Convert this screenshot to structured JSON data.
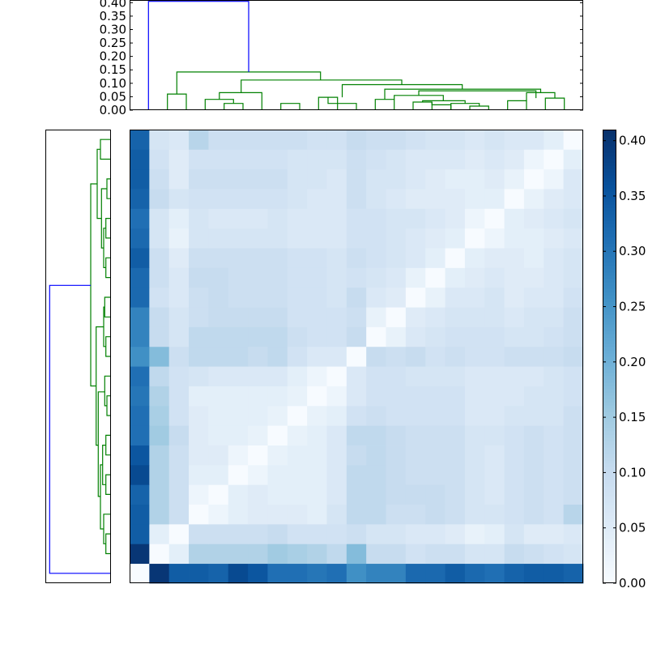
{
  "chart_data": {
    "type": "heatmap",
    "title": "",
    "n": 23,
    "colormap": "Blues",
    "colormap_stops": [
      "#f7fbff",
      "#deebf7",
      "#c6dbef",
      "#9ecae1",
      "#6baed6",
      "#4292c6",
      "#2171b5",
      "#08519c",
      "#08306b"
    ],
    "vmin": 0.0,
    "vmax": 0.41,
    "first_row_distances": [
      0.0,
      0.4,
      0.34,
      0.34,
      0.33,
      0.37,
      0.35,
      0.31,
      0.31,
      0.3,
      0.31,
      0.26,
      0.28,
      0.28,
      0.32,
      0.32,
      0.34,
      0.32,
      0.31,
      0.33,
      0.34,
      0.34,
      0.33
    ],
    "distance_matrix": [
      [
        0.0,
        0.4,
        0.34,
        0.34,
        0.33,
        0.37,
        0.35,
        0.31,
        0.31,
        0.3,
        0.31,
        0.26,
        0.28,
        0.28,
        0.32,
        0.32,
        0.34,
        0.32,
        0.31,
        0.33,
        0.34,
        0.34,
        0.33
      ],
      [
        0.4,
        0.0,
        0.04,
        0.13,
        0.13,
        0.13,
        0.13,
        0.15,
        0.14,
        0.13,
        0.11,
        0.18,
        0.1,
        0.1,
        0.08,
        0.09,
        0.09,
        0.07,
        0.07,
        0.1,
        0.09,
        0.08,
        0.07
      ],
      [
        0.34,
        0.04,
        0.0,
        0.09,
        0.09,
        0.09,
        0.09,
        0.1,
        0.08,
        0.08,
        0.08,
        0.09,
        0.07,
        0.07,
        0.06,
        0.06,
        0.05,
        0.03,
        0.04,
        0.07,
        0.05,
        0.05,
        0.06
      ],
      [
        0.34,
        0.13,
        0.09,
        0.0,
        0.02,
        0.04,
        0.05,
        0.05,
        0.05,
        0.04,
        0.07,
        0.11,
        0.11,
        0.09,
        0.09,
        0.1,
        0.09,
        0.07,
        0.07,
        0.08,
        0.09,
        0.08,
        0.12
      ],
      [
        0.33,
        0.13,
        0.09,
        0.02,
        0.0,
        0.04,
        0.05,
        0.04,
        0.04,
        0.04,
        0.06,
        0.11,
        0.11,
        0.1,
        0.1,
        0.1,
        0.09,
        0.07,
        0.06,
        0.08,
        0.09,
        0.08,
        0.09
      ],
      [
        0.37,
        0.13,
        0.09,
        0.04,
        0.04,
        0.0,
        0.02,
        0.04,
        0.04,
        0.04,
        0.06,
        0.11,
        0.11,
        0.1,
        0.09,
        0.09,
        0.09,
        0.07,
        0.06,
        0.08,
        0.09,
        0.08,
        0.09
      ],
      [
        0.35,
        0.13,
        0.09,
        0.05,
        0.05,
        0.02,
        0.0,
        0.03,
        0.04,
        0.04,
        0.06,
        0.1,
        0.11,
        0.1,
        0.09,
        0.09,
        0.09,
        0.07,
        0.06,
        0.08,
        0.09,
        0.08,
        0.09
      ],
      [
        0.31,
        0.15,
        0.1,
        0.05,
        0.04,
        0.04,
        0.03,
        0.0,
        0.03,
        0.04,
        0.06,
        0.11,
        0.11,
        0.1,
        0.09,
        0.09,
        0.09,
        0.07,
        0.07,
        0.08,
        0.09,
        0.08,
        0.09
      ],
      [
        0.31,
        0.14,
        0.08,
        0.05,
        0.04,
        0.04,
        0.04,
        0.03,
        0.0,
        0.03,
        0.04,
        0.08,
        0.09,
        0.08,
        0.08,
        0.08,
        0.08,
        0.06,
        0.06,
        0.07,
        0.07,
        0.07,
        0.09
      ],
      [
        0.3,
        0.13,
        0.08,
        0.04,
        0.04,
        0.04,
        0.04,
        0.04,
        0.03,
        0.0,
        0.02,
        0.06,
        0.08,
        0.08,
        0.08,
        0.08,
        0.08,
        0.06,
        0.06,
        0.06,
        0.07,
        0.07,
        0.08
      ],
      [
        0.31,
        0.11,
        0.08,
        0.07,
        0.06,
        0.06,
        0.06,
        0.06,
        0.04,
        0.02,
        0.0,
        0.06,
        0.08,
        0.08,
        0.07,
        0.07,
        0.07,
        0.06,
        0.06,
        0.06,
        0.06,
        0.07,
        0.08
      ],
      [
        0.26,
        0.18,
        0.09,
        0.11,
        0.11,
        0.11,
        0.1,
        0.11,
        0.08,
        0.06,
        0.06,
        0.0,
        0.1,
        0.09,
        0.1,
        0.08,
        0.09,
        0.08,
        0.08,
        0.09,
        0.09,
        0.09,
        0.1
      ],
      [
        0.28,
        0.1,
        0.07,
        0.11,
        0.11,
        0.11,
        0.11,
        0.11,
        0.09,
        0.08,
        0.08,
        0.1,
        0.0,
        0.03,
        0.06,
        0.07,
        0.08,
        0.08,
        0.08,
        0.07,
        0.07,
        0.08,
        0.09
      ],
      [
        0.28,
        0.1,
        0.07,
        0.09,
        0.1,
        0.1,
        0.1,
        0.1,
        0.08,
        0.08,
        0.08,
        0.09,
        0.03,
        0.0,
        0.05,
        0.06,
        0.07,
        0.07,
        0.07,
        0.06,
        0.07,
        0.07,
        0.09
      ],
      [
        0.32,
        0.08,
        0.06,
        0.09,
        0.1,
        0.09,
        0.09,
        0.09,
        0.08,
        0.08,
        0.07,
        0.1,
        0.06,
        0.05,
        0.0,
        0.03,
        0.06,
        0.06,
        0.07,
        0.05,
        0.06,
        0.06,
        0.08
      ],
      [
        0.32,
        0.09,
        0.06,
        0.1,
        0.1,
        0.09,
        0.09,
        0.09,
        0.08,
        0.08,
        0.07,
        0.08,
        0.07,
        0.06,
        0.03,
        0.0,
        0.04,
        0.05,
        0.06,
        0.05,
        0.05,
        0.06,
        0.07
      ],
      [
        0.34,
        0.09,
        0.05,
        0.09,
        0.09,
        0.09,
        0.09,
        0.09,
        0.08,
        0.08,
        0.07,
        0.09,
        0.08,
        0.07,
        0.06,
        0.04,
        0.0,
        0.04,
        0.05,
        0.05,
        0.04,
        0.06,
        0.07
      ],
      [
        0.32,
        0.07,
        0.03,
        0.07,
        0.07,
        0.07,
        0.07,
        0.07,
        0.06,
        0.06,
        0.06,
        0.08,
        0.08,
        0.07,
        0.06,
        0.05,
        0.04,
        0.0,
        0.02,
        0.04,
        0.04,
        0.05,
        0.06
      ],
      [
        0.31,
        0.07,
        0.04,
        0.07,
        0.06,
        0.06,
        0.06,
        0.07,
        0.06,
        0.06,
        0.06,
        0.08,
        0.08,
        0.07,
        0.07,
        0.06,
        0.05,
        0.02,
        0.0,
        0.04,
        0.05,
        0.06,
        0.07
      ],
      [
        0.33,
        0.1,
        0.07,
        0.08,
        0.08,
        0.08,
        0.08,
        0.08,
        0.07,
        0.06,
        0.06,
        0.09,
        0.07,
        0.06,
        0.05,
        0.05,
        0.05,
        0.04,
        0.04,
        0.0,
        0.03,
        0.05,
        0.06
      ],
      [
        0.34,
        0.09,
        0.05,
        0.09,
        0.09,
        0.09,
        0.09,
        0.09,
        0.07,
        0.07,
        0.06,
        0.09,
        0.07,
        0.07,
        0.06,
        0.05,
        0.04,
        0.04,
        0.05,
        0.03,
        0.0,
        0.02,
        0.06
      ],
      [
        0.34,
        0.08,
        0.05,
        0.08,
        0.08,
        0.08,
        0.08,
        0.08,
        0.07,
        0.07,
        0.07,
        0.09,
        0.08,
        0.07,
        0.06,
        0.06,
        0.06,
        0.05,
        0.06,
        0.05,
        0.02,
        0.0,
        0.04
      ],
      [
        0.33,
        0.07,
        0.06,
        0.12,
        0.09,
        0.09,
        0.09,
        0.09,
        0.09,
        0.08,
        0.08,
        0.1,
        0.09,
        0.09,
        0.08,
        0.07,
        0.07,
        0.06,
        0.07,
        0.06,
        0.06,
        0.04,
        0.0
      ]
    ],
    "colorbar": {
      "ticks": [
        "0.00",
        "0.05",
        "0.10",
        "0.15",
        "0.20",
        "0.25",
        "0.30",
        "0.35",
        "0.40"
      ]
    },
    "top_dendrogram": {
      "ylim": [
        0,
        0.41
      ],
      "ticks": [
        "0.00",
        "0.05",
        "0.10",
        "0.15",
        "0.20",
        "0.25",
        "0.30",
        "0.35",
        "0.40"
      ],
      "links": [
        {
          "a": 8.0,
          "ha": 0.0,
          "b": 9.0,
          "hb": 0.0,
          "h": 0.025,
          "color": "#008000"
        },
        {
          "a": 5.0,
          "ha": 0.0,
          "b": 6.0,
          "hb": 0.0,
          "h": 0.025,
          "color": "#008000"
        },
        {
          "a": 13.0,
          "ha": 0.0,
          "b": 14.0,
          "hb": 0.0,
          "h": 0.04,
          "color": "#008000"
        },
        {
          "a": 15.0,
          "ha": 0.0,
          "b": 16.0,
          "hb": 0.0,
          "h": 0.03,
          "color": "#008000"
        },
        {
          "a": 16.0,
          "ha": 0.03,
          "b": 17.0,
          "hb": 0.0,
          "h": 0.02,
          "color": "#008000"
        },
        {
          "a": 18.0,
          "ha": 0.0,
          "b": 19.0,
          "hb": 0.0,
          "h": 0.015,
          "color": "#008000"
        },
        {
          "a": 17.0,
          "ha": 0.0,
          "b": 18.5,
          "hb": 0.015,
          "h": 0.025,
          "color": "#008000"
        },
        {
          "a": 15.5,
          "ha": 0.03,
          "b": 17.75,
          "hb": 0.025,
          "h": 0.035,
          "color": "#008000"
        },
        {
          "a": 20.0,
          "ha": 0.0,
          "b": 21.0,
          "hb": 0.0,
          "h": 0.035,
          "color": "#008000"
        },
        {
          "a": 22.0,
          "ha": 0.0,
          "b": 23.0,
          "hb": 0.0,
          "h": 0.045,
          "color": "#008000"
        },
        {
          "a": 4.0,
          "ha": 0.0,
          "b": 5.5,
          "hb": 0.025,
          "h": 0.04,
          "color": "#008000"
        },
        {
          "a": 4.75,
          "ha": 0.04,
          "b": 7.0,
          "hb": 0.0,
          "h": 0.065,
          "color": "#008000"
        },
        {
          "a": 10.0,
          "ha": 0.0,
          "b": 11.0,
          "hb": 0.0,
          "h": 0.048,
          "color": "#008000"
        },
        {
          "a": 10.5,
          "ha": 0.048,
          "b": 12.0,
          "hb": 0.0,
          "h": 0.025,
          "color": "#008000"
        },
        {
          "a": 14.0,
          "ha": 0.04,
          "b": 16.6,
          "hb": 0.035,
          "h": 0.055,
          "color": "#008000"
        },
        {
          "a": 15.3,
          "ha": 0.055,
          "b": 21.5,
          "hb": 0.045,
          "h": 0.072,
          "color": "#008000"
        },
        {
          "a": 21.0,
          "ha": 0.035,
          "b": 22.5,
          "hb": 0.045,
          "h": 0.065,
          "color": "#008000"
        },
        {
          "a": 13.5,
          "ha": 0.04,
          "b": 21.75,
          "hb": 0.065,
          "h": 0.078,
          "color": "#008000"
        },
        {
          "a": 11.25,
          "ha": 0.048,
          "b": 17.6,
          "hb": 0.078,
          "h": 0.095,
          "color": "#008000"
        },
        {
          "a": 5.9,
          "ha": 0.065,
          "b": 14.4,
          "hb": 0.095,
          "h": 0.112,
          "color": "#008000"
        },
        {
          "a": 2.0,
          "ha": 0.0,
          "b": 3.0,
          "hb": 0.0,
          "h": 0.06,
          "color": "#008000"
        },
        {
          "a": 2.5,
          "ha": 0.06,
          "b": 10.1,
          "hb": 0.112,
          "h": 0.142,
          "color": "#008000"
        },
        {
          "a": 1.0,
          "ha": 0.0,
          "b": 6.3,
          "hb": 0.142,
          "h": 0.405,
          "color": "#0000ff"
        }
      ]
    },
    "left_dendrogram": {
      "links": [
        {
          "a": 1.0,
          "ha": 0.0,
          "b": 2.0,
          "hb": 0.0,
          "h": 0.02,
          "color": "#008000"
        },
        {
          "a": 1.5,
          "ha": 0.02,
          "b": 3.0,
          "hb": 0.0,
          "h": 0.03,
          "color": "#008000"
        },
        {
          "a": 4.0,
          "ha": 0.0,
          "b": 5.0,
          "hb": 0.0,
          "h": 0.02,
          "color": "#008000"
        },
        {
          "a": 6.0,
          "ha": 0.0,
          "b": 7.0,
          "hb": 0.0,
          "h": 0.02,
          "color": "#008000"
        },
        {
          "a": 4.5,
          "ha": 0.02,
          "b": 6.5,
          "hb": 0.02,
          "h": 0.035,
          "color": "#008000"
        },
        {
          "a": 2.25,
          "ha": 0.03,
          "b": 5.5,
          "hb": 0.035,
          "h": 0.045,
          "color": "#008000"
        },
        {
          "a": 8.0,
          "ha": 0.0,
          "b": 9.0,
          "hb": 0.0,
          "h": 0.015,
          "color": "#008000"
        },
        {
          "a": 8.5,
          "ha": 0.015,
          "b": 10.0,
          "hb": 0.0,
          "h": 0.025,
          "color": "#008000"
        },
        {
          "a": 3.9,
          "ha": 0.045,
          "b": 9.2,
          "hb": 0.025,
          "h": 0.055,
          "color": "#008000"
        },
        {
          "a": 11.0,
          "ha": 0.0,
          "b": 12.0,
          "hb": 0.0,
          "h": 0.02,
          "color": "#008000"
        },
        {
          "a": 13.0,
          "ha": 0.0,
          "b": 14.0,
          "hb": 0.0,
          "h": 0.025,
          "color": "#008000"
        },
        {
          "a": 11.5,
          "ha": 0.02,
          "b": 13.5,
          "hb": 0.025,
          "h": 0.03,
          "color": "#008000"
        },
        {
          "a": 6.5,
          "ha": 0.055,
          "b": 12.5,
          "hb": 0.03,
          "h": 0.065,
          "color": "#008000"
        },
        {
          "a": 15.0,
          "ha": 0.0,
          "b": 16.0,
          "hb": 0.0,
          "h": 0.02,
          "color": "#008000"
        },
        {
          "a": 17.0,
          "ha": 0.0,
          "b": 18.0,
          "hb": 0.0,
          "h": 0.02,
          "color": "#008000"
        },
        {
          "a": 15.5,
          "ha": 0.02,
          "b": 17.5,
          "hb": 0.02,
          "h": 0.03,
          "color": "#008000"
        },
        {
          "a": 19.0,
          "ha": 0.0,
          "b": 20.0,
          "hb": 0.0,
          "h": 0.015,
          "color": "#008000"
        },
        {
          "a": 16.5,
          "ha": 0.03,
          "b": 19.5,
          "hb": 0.015,
          "h": 0.04,
          "color": "#008000"
        },
        {
          "a": 21.0,
          "ha": 0.0,
          "b": 22.0,
          "hb": 0.0,
          "h": 0.045,
          "color": "#008000"
        },
        {
          "a": 18.0,
          "ha": 0.04,
          "b": 21.5,
          "hb": 0.045,
          "h": 0.06,
          "color": "#008000"
        },
        {
          "a": 9.5,
          "ha": 0.065,
          "b": 19.75,
          "hb": 0.06,
          "h": 0.09,
          "color": "#008000"
        },
        {
          "a": 0.0,
          "ha": 0.0,
          "b": 14.6,
          "hb": 0.09,
          "h": 0.28,
          "color": "#0000ff"
        }
      ]
    }
  }
}
